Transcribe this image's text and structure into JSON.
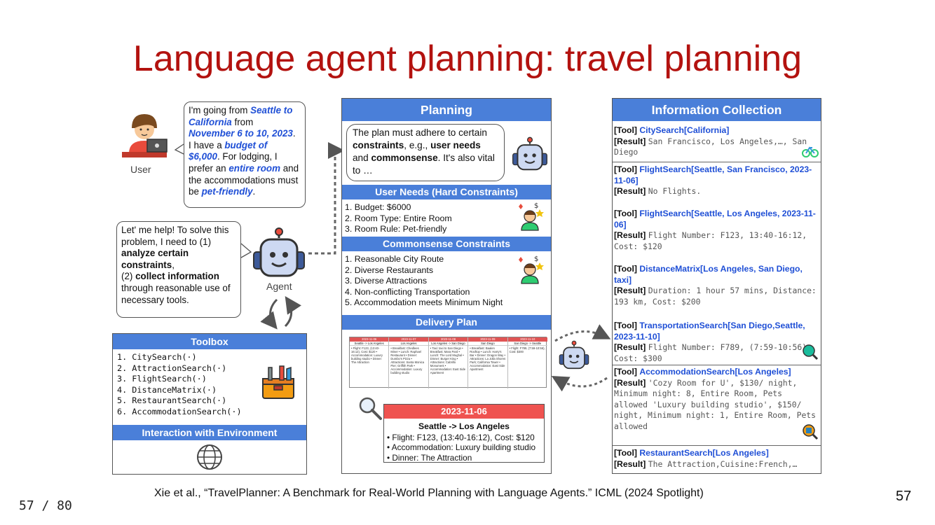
{
  "slide": {
    "title": "Language agent planning: travel planning",
    "citation": "Xie et al., “TravelPlanner: A Benchmark for Real-World Planning with Language Agents.” ICML (2024 Spotlight)",
    "page_counter": "57 / 80",
    "page_number": "57"
  },
  "user": {
    "label": "User",
    "t1": "I'm going from ",
    "h1": "Seattle to California",
    "t2": " from ",
    "h2": "November 6 to 10, 2023",
    "t3": ". I have a ",
    "h3": "budget of $6,000",
    "t4": ".  For lodging, I prefer an ",
    "h4": "entire room",
    "t5": " and the accommodations must be ",
    "h5": "pet-friendly",
    "t6": "."
  },
  "agent": {
    "label": "Agent",
    "t1": "Let' me help! To solve this problem, I need to (1) ",
    "b1": "analyze certain constraints",
    "t2": ",",
    "t3": "(2) ",
    "b2": "collect information",
    "t4": " through reasonable use of necessary tools."
  },
  "toolbox": {
    "title": "Toolbox",
    "tools": [
      "1. CitySearch(·)",
      "2. AttractionSearch(·)",
      "3. FlightSearch(·)",
      "4. DistanceMatrix(·)",
      "5. RestaurantSearch(·)",
      "6. AccommodationSearch(·)"
    ],
    "interaction_title": "Interaction with Environment"
  },
  "planning": {
    "title": "Planning",
    "b_t1": "The plan must adhere to certain ",
    "b_b1": "constraints",
    "b_t2": ", e.g., ",
    "b_b2": "user needs",
    "b_t3": " and ",
    "b_b3": "commonsense",
    "b_t4": ". It's also vital to …",
    "user_needs_title": "User Needs (Hard Constraints)",
    "user_needs": [
      "1. Budget: $6000",
      "2. Room Type: Entire Room",
      "3. Room Rule: Pet-friendly"
    ],
    "commonsense_title": "Commonsense Constraints",
    "commonsense": [
      "1. Reasonable City Route",
      "2. Diverse Restaurants",
      "3. Diverse Attractions",
      "4. Non-conflicting Transportation",
      "5. Accommodation meets Minimum Night"
    ],
    "delivery_title": "Delivery Plan",
    "mini_plan": [
      {
        "date": "2023-11-06",
        "route": "Seattle -> Los Angeles",
        "body": "• Flight: F123, (13:40-16:12), Cost: $120 • Accommodation: Luxury building studio • Dinner: The Attraction"
      },
      {
        "date": "2023-11-07",
        "route": "Los Angeles",
        "body": "• Breakfast: Chedlees Miner • Lunch: Raphael Restaurant • Dinner: Dumbo's Pizza • Attractions: Santa Monica Pier; Griffith Park • Accommodation: Luxury building studio"
      },
      {
        "date": "2023-11-08",
        "route": "Los Angeles -> San Diego",
        "body": "• Taxi: taxi to San Diego • Breakfast: Mara Pard • Lunch: The Lord Mughal • Dinner: Burger King • Attractions: Cabrillo Monument • Accommodation: East Side Apartment"
      },
      {
        "date": "2023-11-09",
        "route": "San Diego",
        "body": "• Breakfast: Baalen Rooftop • Lunch: Harry's Bar • Dinner: Dragon Way • Attractions: La Jolla Shores Park; California Tower • Accommodation: East Side Apartment"
      },
      {
        "date": "2023-11-10",
        "route": "San Diego -> Seattle",
        "body": "• Flight: F789, (7:59-10:56), Cost: $300"
      }
    ],
    "day_date": "2023-11-06",
    "day_route": "Seattle -> Los Angeles",
    "day_items": [
      "• Flight: F123, (13:40-16:12), Cost: $120",
      "• Accommodation: Luxury building studio",
      "• Dinner: The Attraction"
    ]
  },
  "info": {
    "title": "Information Collection",
    "tool_tag": "[Tool]",
    "result_tag": "[Result]",
    "entries": [
      {
        "call": "CitySearch[California]",
        "result": "San Francisco, Los Angeles,…, San Diego"
      },
      {
        "call": "FlightSearch[Seattle, San Francisco, 2023-11-06]",
        "result": "No Flights."
      },
      {
        "call": "FlightSearch[Seattle, Los Angeles, 2023-11-06]",
        "result": "Flight Number: F123, 13:40-16:12, Cost: $120"
      },
      {
        "call": "DistanceMatrix[Los Angeles, San Diego, taxi]",
        "result": "Duration: 1 hour 57 mins, Distance: 193 km, Cost: $200"
      },
      {
        "call": "TransportationSearch[San Diego,Seattle, 2023-11-10]",
        "result": "Flight Number: F789, (7:59-10:56), Cost: $300"
      },
      {
        "call": "AccommodationSearch[Los Angeles]",
        "result": "'Cozy Room for U', $130/ night, Minimum night: 8, Entire Room, Pets allowed 'Luxury building studio', $150/ night, Minimum night: 1, Entire Room, Pets allowed"
      },
      {
        "call": "RestaurantSearch[Los Angeles]",
        "result": "The Attraction,Cuisine:French,…"
      }
    ]
  },
  "colors": {
    "title_red": "#b3120f",
    "bar_blue": "#4a7fd9",
    "highlight_blue": "#1f4fd6",
    "date_red": "#ef5350"
  }
}
